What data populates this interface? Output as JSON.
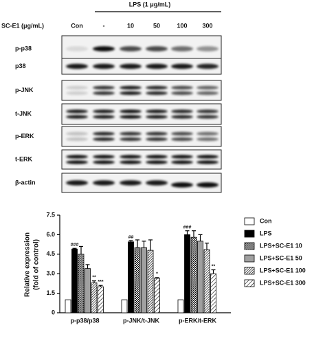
{
  "blot": {
    "treatment_label": "LPS (1 μg/mL)",
    "dose_label": "SC-E1 (μg/mL)",
    "lanes": [
      "Con",
      "-",
      "10",
      "50",
      "100",
      "300"
    ],
    "rows": [
      "p-p38",
      "p38",
      "p-JNK",
      "t-JNK",
      "p-ERK",
      "t-ERK",
      "β-actin"
    ]
  },
  "chart_data": {
    "type": "bar",
    "ylabel": [
      "Relative expression",
      "(fold of control)"
    ],
    "categories": [
      "p-p38/p38",
      "p-JNK/t-JNK",
      "p-ERK/t-ERK"
    ],
    "ylim": [
      0,
      7.5
    ],
    "yticks": [
      0,
      1.5,
      {
        "value": 3,
        "label": "3.0"
      },
      4.5,
      {
        "value": 6,
        "label": "6.0"
      },
      7.5
    ],
    "series": [
      {
        "name": "Con",
        "color": "#ffffff",
        "values": [
          1,
          1,
          1
        ],
        "errors": [
          0,
          0,
          0
        ]
      },
      {
        "name": "LPS",
        "color": "#000000",
        "values": [
          4.9,
          5.45,
          6.0
        ],
        "errors": [
          0.05,
          0.1,
          0.3
        ],
        "annotations": [
          "###",
          "##",
          "###"
        ]
      },
      {
        "name": "LPS+SC-E1 10",
        "color": "#000000",
        "pattern": "checker",
        "values": [
          4.5,
          5.0,
          5.8
        ],
        "errors": [
          0.6,
          0.6,
          0.5
        ]
      },
      {
        "name": "LPS+SC-E1 50",
        "color": "#a0a0a0",
        "values": [
          3.4,
          5.0,
          5.5
        ],
        "errors": [
          0.3,
          0.5,
          0.5
        ]
      },
      {
        "name": "LPS+SC-E1 100",
        "color": "#000000",
        "pattern": "dense-diagonal",
        "values": [
          2.3,
          4.8,
          4.85
        ],
        "errors": [
          0.15,
          0.8,
          0.5
        ],
        "annotations": [
          "**",
          null,
          null
        ]
      },
      {
        "name": "LPS+SC-E1 300",
        "color": "#000000",
        "pattern": "diagonal",
        "values": [
          2.0,
          2.65,
          3.0
        ],
        "errors": [
          0.1,
          0.05,
          0.3
        ],
        "annotations": [
          "***",
          "*",
          "**"
        ]
      }
    ]
  }
}
